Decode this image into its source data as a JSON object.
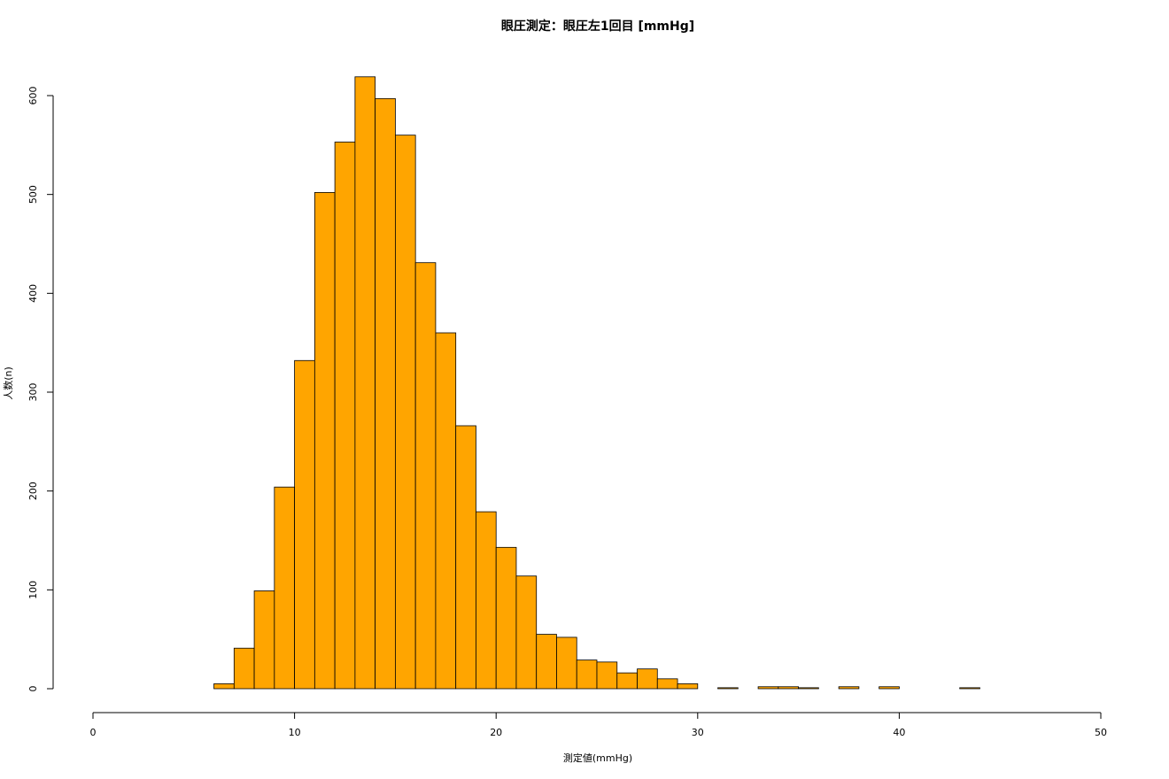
{
  "chart_data": {
    "type": "histogram",
    "title": "眼圧測定：眼圧左1回目 [mmHg]",
    "x_label": "測定値(mmHg)",
    "y_label": "人数(n)",
    "bins": [
      6,
      7,
      8,
      9,
      10,
      11,
      12,
      13,
      14,
      15,
      16,
      17,
      18,
      19,
      20,
      21,
      22,
      23,
      24,
      25,
      26,
      27,
      28,
      29,
      30,
      31,
      32,
      33,
      34,
      35,
      36,
      37,
      38,
      39,
      40,
      41,
      42,
      43,
      44
    ],
    "values": [
      5,
      41,
      99,
      204,
      332,
      502,
      553,
      619,
      597,
      560,
      431,
      360,
      266,
      179,
      143,
      114,
      55,
      52,
      29,
      27,
      16,
      20,
      10,
      5,
      0,
      1,
      0,
      2,
      2,
      1,
      0,
      2,
      0,
      2,
      0,
      0,
      0,
      1
    ],
    "color": "#ffa500",
    "xlim": [
      0,
      50
    ],
    "xticks": [
      0,
      10,
      20,
      30,
      40,
      50
    ],
    "ylim": [
      0,
      600
    ],
    "yticks": [
      0,
      100,
      200,
      300,
      400,
      500,
      600
    ]
  }
}
